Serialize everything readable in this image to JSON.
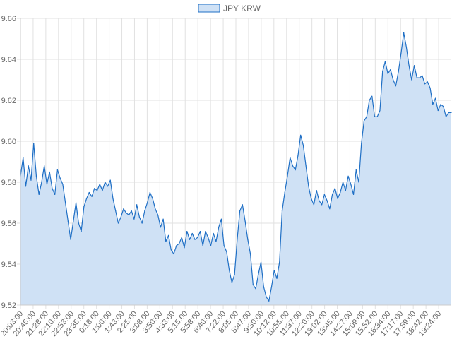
{
  "chart_data": {
    "type": "area",
    "legend": {
      "position": "top-center",
      "entries": [
        "JPY KRW"
      ]
    },
    "series": [
      {
        "name": "JPY KRW",
        "line_color": "#1f6fc5",
        "fill_color": "#cfe1f5",
        "values": [
          9.583,
          9.592,
          9.578,
          9.588,
          9.581,
          9.599,
          9.583,
          9.574,
          9.58,
          9.588,
          9.579,
          9.585,
          9.577,
          9.574,
          9.586,
          9.582,
          9.579,
          9.57,
          9.561,
          9.552,
          9.561,
          9.57,
          9.56,
          9.556,
          9.568,
          9.572,
          9.575,
          9.573,
          9.577,
          9.576,
          9.579,
          9.576,
          9.58,
          9.578,
          9.581,
          9.572,
          9.566,
          9.56,
          9.563,
          9.567,
          9.565,
          9.564,
          9.566,
          9.562,
          9.569,
          9.563,
          9.56,
          9.566,
          9.57,
          9.575,
          9.572,
          9.567,
          9.564,
          9.558,
          9.562,
          9.551,
          9.554,
          9.547,
          9.545,
          9.549,
          9.55,
          9.553,
          9.548,
          9.556,
          9.552,
          9.555,
          9.552,
          9.553,
          9.556,
          9.549,
          9.556,
          9.553,
          9.549,
          9.555,
          9.551,
          9.558,
          9.562,
          9.549,
          9.546,
          9.537,
          9.531,
          9.535,
          9.552,
          9.566,
          9.569,
          9.561,
          9.552,
          9.545,
          9.53,
          9.528,
          9.535,
          9.541,
          9.529,
          9.524,
          9.522,
          9.529,
          9.537,
          9.533,
          9.541,
          9.566,
          9.575,
          9.583,
          9.592,
          9.588,
          9.586,
          9.593,
          9.603,
          9.598,
          9.588,
          9.578,
          9.572,
          9.569,
          9.576,
          9.571,
          9.569,
          9.574,
          9.571,
          9.567,
          9.574,
          9.577,
          9.572,
          9.575,
          9.58,
          9.576,
          9.583,
          9.579,
          9.574,
          9.586,
          9.58,
          9.599,
          9.61,
          9.612,
          9.62,
          9.622,
          9.612,
          9.612,
          9.615,
          9.634,
          9.639,
          9.633,
          9.635,
          9.63,
          9.627,
          9.634,
          9.643,
          9.653,
          9.646,
          9.637,
          9.63,
          9.637,
          9.631,
          9.631,
          9.632,
          9.628,
          9.629,
          9.626,
          9.618,
          9.621,
          9.615,
          9.618,
          9.617,
          9.612,
          9.614,
          9.614
        ]
      }
    ],
    "x_tick_labels": [
      "20:03:00",
      "20:45:00",
      "21:28:00",
      "22:10:00",
      "22:53:00",
      "23:35:00",
      "0:18:00",
      "1:00:00",
      "1:43:00",
      "2:25:00",
      "3:08:00",
      "3:50:00",
      "4:33:00",
      "5:15:00",
      "5:58:00",
      "6:40:00",
      "7:22:00",
      "8:05:00",
      "8:47:00",
      "9:30:00",
      "10:12:00",
      "10:55:00",
      "11:37:00",
      "12:20:00",
      "13:02:00",
      "13:45:00",
      "14:27:00",
      "15:09:00",
      "15:52:00",
      "16:34:00",
      "17:17:00",
      "17:59:00",
      "18:42:00",
      "19:24:00"
    ],
    "y_tick_labels": [
      "9.52",
      "9.54",
      "9.56",
      "9.58",
      "9.60",
      "9.62",
      "9.64",
      "9.66"
    ],
    "ylim": [
      9.52,
      9.66
    ],
    "grid": true
  }
}
